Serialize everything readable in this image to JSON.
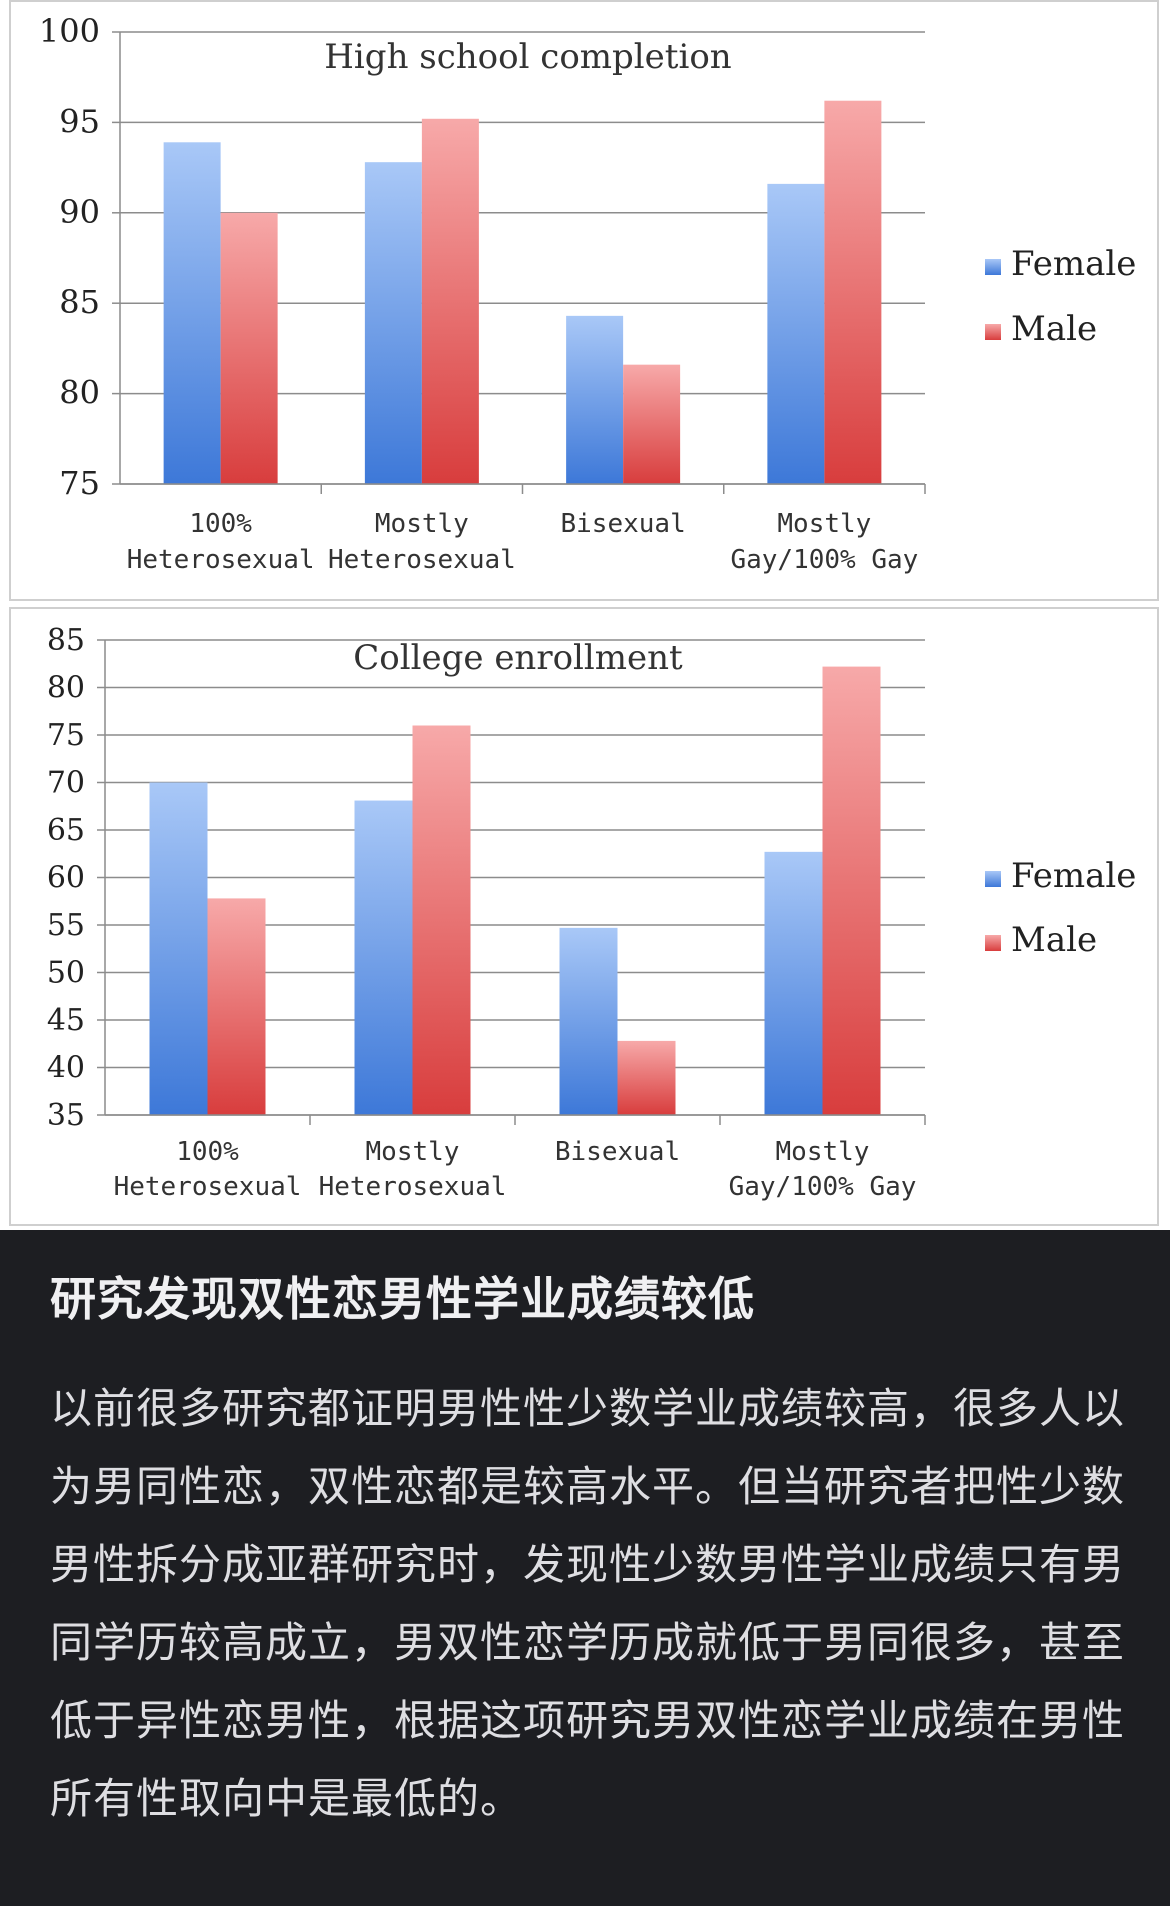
{
  "charts": {
    "legend": {
      "female": "Female",
      "male": "Male"
    },
    "categories": [
      [
        "100%",
        "Heterosexual"
      ],
      [
        "Mostly",
        "Heterosexual"
      ],
      [
        "Bisexual"
      ],
      [
        "Mostly",
        "Gay/100% Gay"
      ]
    ]
  },
  "chart_data": [
    {
      "type": "bar",
      "title": "High school completion",
      "categories": [
        "100% Heterosexual",
        "Mostly Heterosexual",
        "Bisexual",
        "Mostly Gay/100% Gay"
      ],
      "series": [
        {
          "name": "Female",
          "values": [
            93.9,
            92.8,
            84.3,
            91.6
          ]
        },
        {
          "name": "Male",
          "values": [
            90.0,
            95.2,
            81.6,
            96.2
          ]
        }
      ],
      "ylim": [
        75,
        100
      ],
      "yticks": [
        75,
        80,
        85,
        90,
        95,
        100
      ],
      "grid": true,
      "legend_position": "right",
      "colors": {
        "Female": "#6aa0e8",
        "Male": "#e86a6a"
      }
    },
    {
      "type": "bar",
      "title": "College enrollment",
      "categories": [
        "100% Heterosexual",
        "Mostly Heterosexual",
        "Bisexual",
        "Mostly Gay/100% Gay"
      ],
      "series": [
        {
          "name": "Female",
          "values": [
            70.0,
            68.1,
            54.7,
            62.7
          ]
        },
        {
          "name": "Male",
          "values": [
            57.8,
            76.0,
            42.8,
            82.2
          ]
        }
      ],
      "ylim": [
        35,
        85
      ],
      "yticks": [
        35,
        40,
        45,
        50,
        55,
        60,
        65,
        70,
        75,
        80,
        85
      ],
      "grid": true,
      "legend_position": "right",
      "colors": {
        "Female": "#6aa0e8",
        "Male": "#e86a6a"
      }
    }
  ],
  "article": {
    "headline": "研究发现双性恋男性学业成绩较低",
    "body": "以前很多研究都证明男性性少数学业成绩较高，很多人以为男同性恋，双性恋都是较高水平。但当研究者把性少数男性拆分成亚群研究时，发现性少数男性学业成绩只有男同学历较高成立，男双性恋学历成就低于男同很多，甚至低于异性恋男性，根据这项研究男双性恋学业成绩在男性所有性取向中是最低的。"
  }
}
